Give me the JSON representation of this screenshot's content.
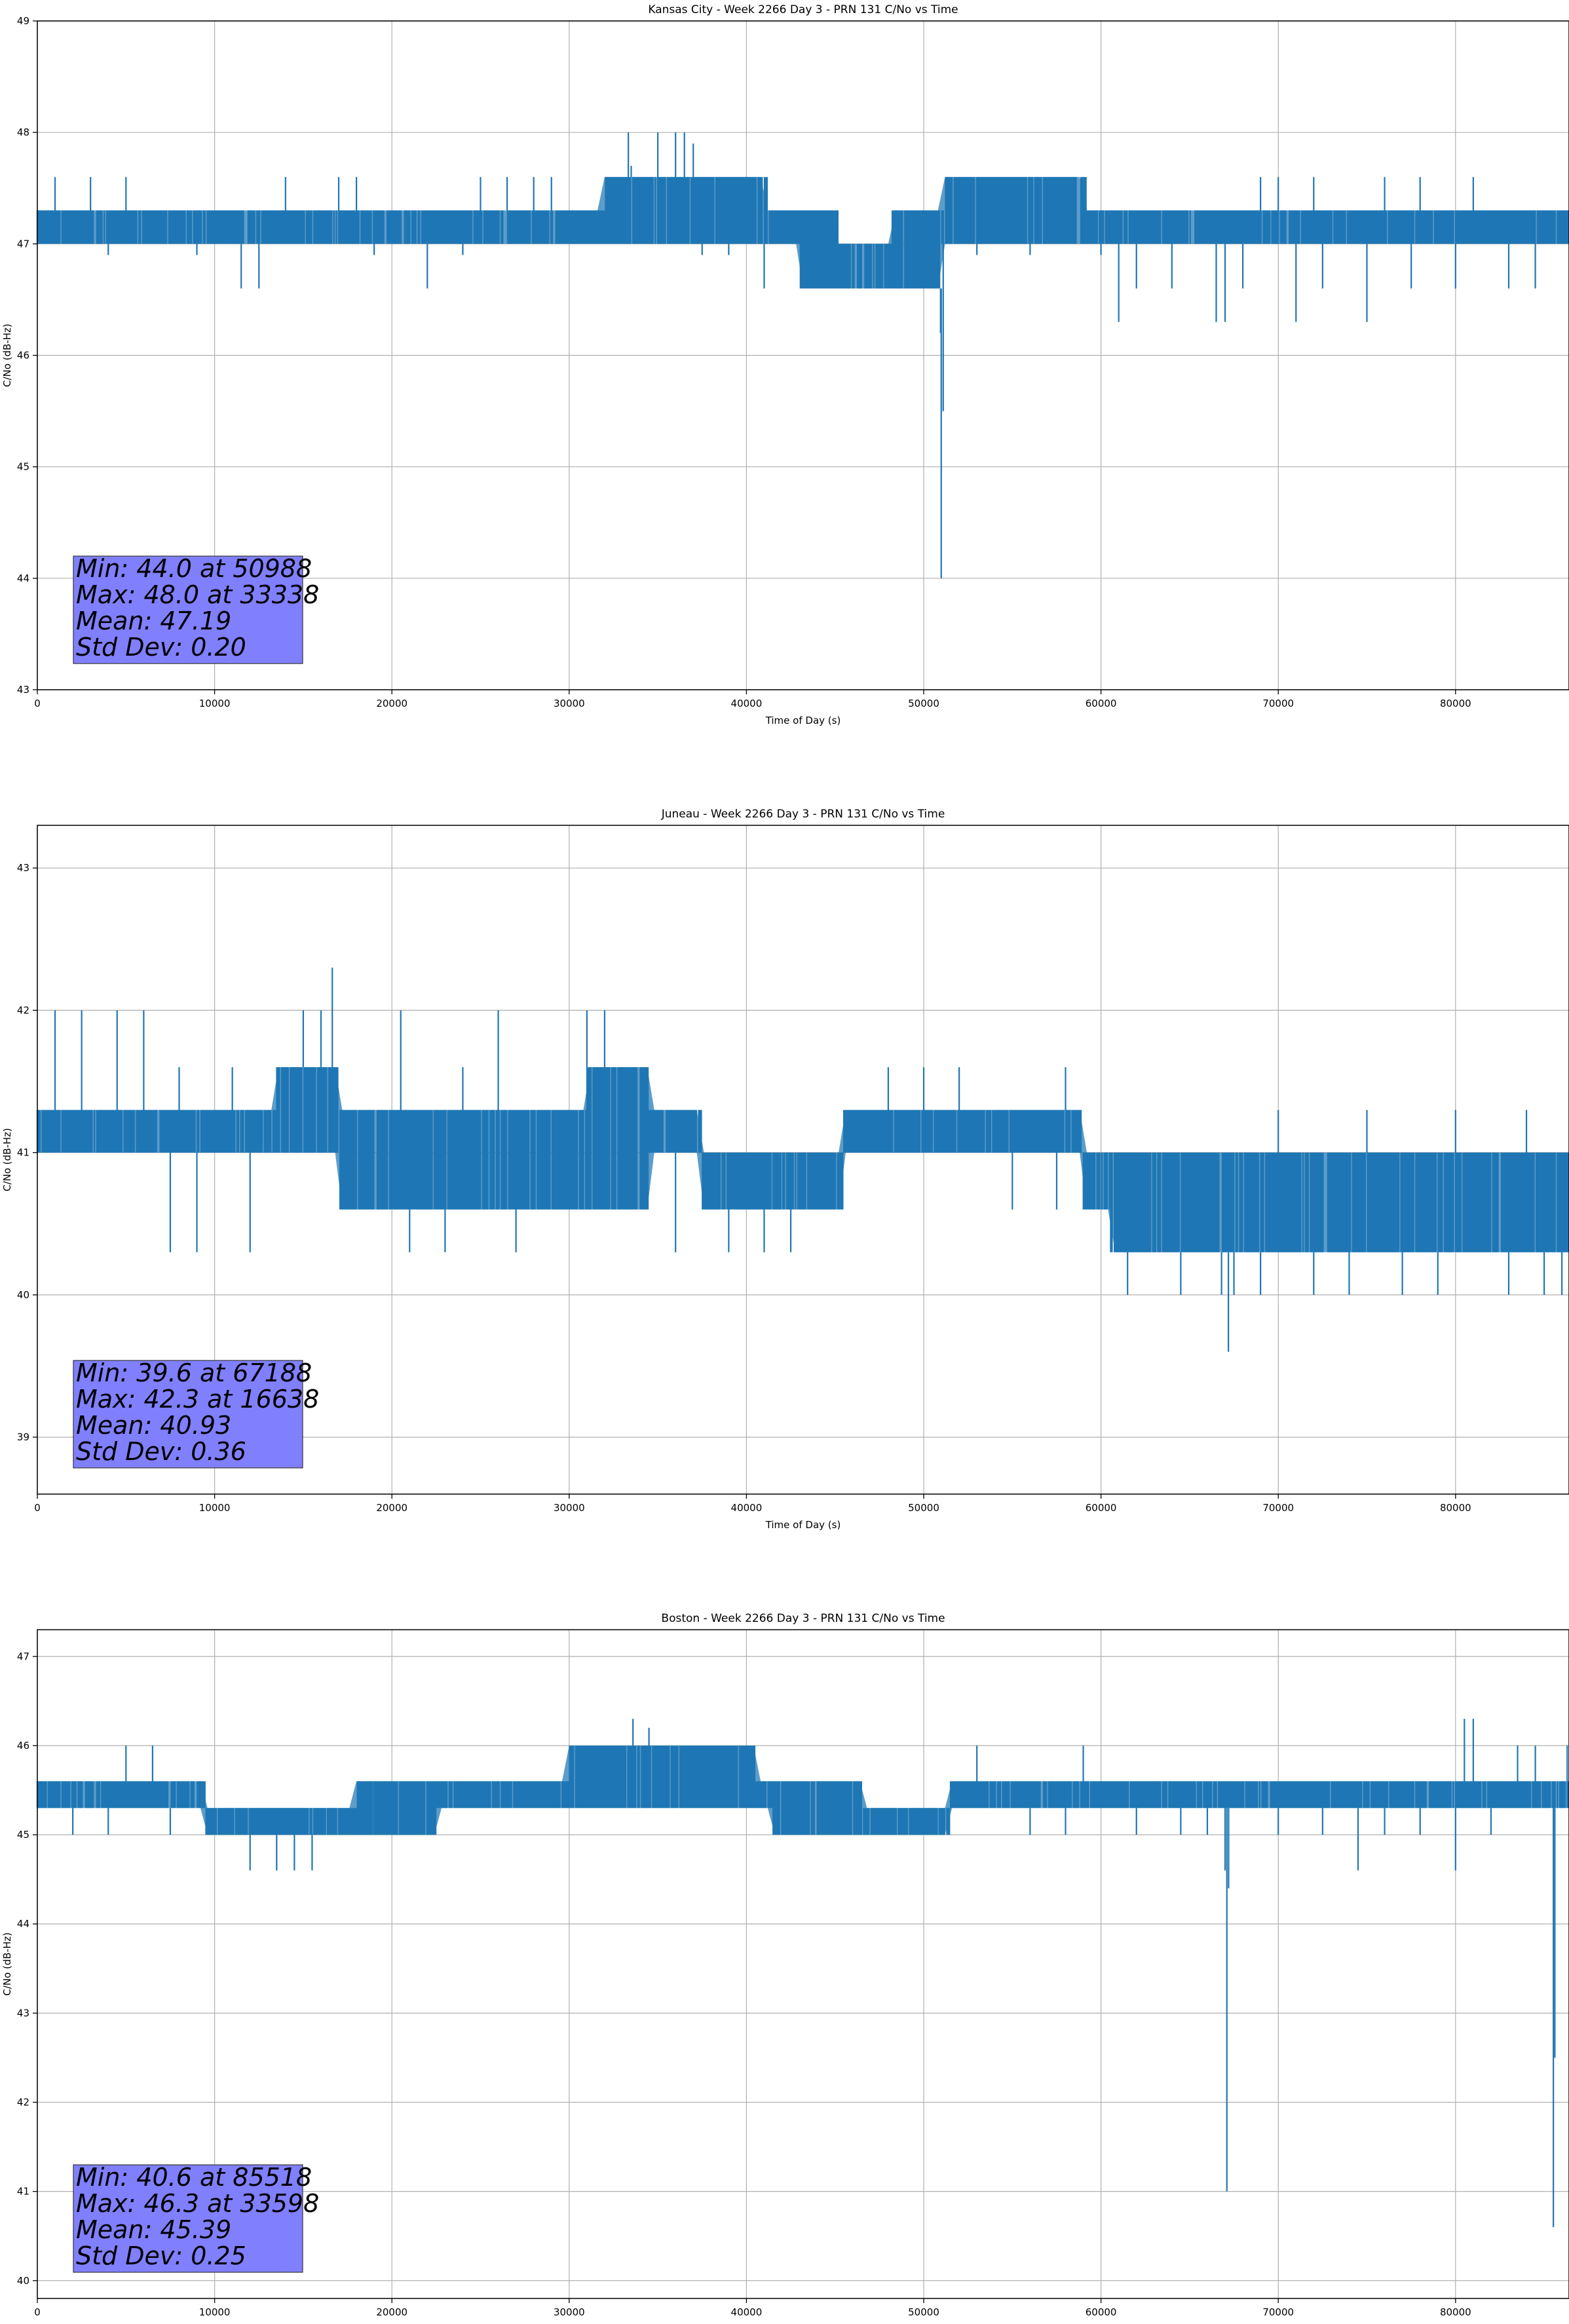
{
  "chart_data": [
    {
      "type": "line",
      "title": "Kansas City - Week 2266 Day 3 - PRN 131 C/No vs Time",
      "xlabel": "Time of Day (s)",
      "ylabel": "C/No (dB-Hz)",
      "xlim": [
        0,
        86400
      ],
      "ylim": [
        43,
        49
      ],
      "xticks": [
        0,
        10000,
        20000,
        30000,
        40000,
        50000,
        60000,
        70000,
        80000
      ],
      "yticks": [
        43,
        44,
        45,
        46,
        47,
        48,
        49
      ],
      "grid": true,
      "series": [
        {
          "color": "#1f77b4",
          "baseline": [
            [
              0,
              47.0
            ],
            [
              40000,
              47.0
            ],
            [
              43000,
              46.6
            ],
            [
              48000,
              46.6
            ],
            [
              51000,
              47.0
            ],
            [
              86400,
              47.0
            ]
          ],
          "upper": [
            [
              0,
              47.3
            ],
            [
              31500,
              47.3
            ],
            [
              32000,
              47.6
            ],
            [
              41000,
              47.6
            ],
            [
              41200,
              47.3
            ],
            [
              45000,
              47.3
            ],
            [
              45200,
              47.0
            ],
            [
              48000,
              47.0
            ],
            [
              48200,
              47.3
            ],
            [
              51000,
              47.3
            ],
            [
              51200,
              47.6
            ],
            [
              59000,
              47.6
            ],
            [
              59200,
              47.3
            ],
            [
              86400,
              47.3
            ]
          ],
          "spikes": [
            [
              50988,
              44.0
            ],
            [
              51100,
              45.5
            ],
            [
              50950,
              46.2
            ],
            [
              33338,
              48.0
            ],
            [
              35000,
              48.0
            ],
            [
              36000,
              48.0
            ],
            [
              36500,
              48.0
            ],
            [
              37000,
              47.9
            ],
            [
              33500,
              47.7
            ],
            [
              11500,
              46.6
            ],
            [
              12500,
              46.6
            ],
            [
              22000,
              46.6
            ],
            [
              41000,
              46.6
            ],
            [
              61000,
              46.3
            ],
            [
              62000,
              46.6
            ],
            [
              64000,
              46.6
            ],
            [
              66500,
              46.3
            ],
            [
              67000,
              46.3
            ],
            [
              68000,
              46.6
            ],
            [
              71000,
              46.3
            ],
            [
              72500,
              46.6
            ],
            [
              75000,
              46.3
            ],
            [
              77500,
              46.6
            ],
            [
              80000,
              46.6
            ],
            [
              83000,
              46.6
            ],
            [
              84500,
              46.6
            ],
            [
              1000,
              47.6
            ],
            [
              3000,
              47.6
            ],
            [
              5000,
              47.6
            ],
            [
              14000,
              47.6
            ],
            [
              17000,
              47.6
            ],
            [
              18000,
              47.6
            ],
            [
              25000,
              47.6
            ],
            [
              26500,
              47.6
            ],
            [
              28000,
              47.6
            ],
            [
              29000,
              47.6
            ],
            [
              69000,
              47.6
            ],
            [
              70000,
              47.6
            ],
            [
              72000,
              47.6
            ],
            [
              76000,
              47.6
            ],
            [
              78000,
              47.6
            ],
            [
              81000,
              47.6
            ],
            [
              4000,
              46.9
            ],
            [
              9000,
              46.9
            ],
            [
              19000,
              46.9
            ],
            [
              24000,
              46.9
            ],
            [
              37500,
              46.9
            ],
            [
              39000,
              46.9
            ],
            [
              53000,
              46.9
            ],
            [
              56000,
              46.9
            ],
            [
              60000,
              46.9
            ]
          ]
        }
      ],
      "stats_box": {
        "min": "Min: 44.0 at 50988",
        "max": "Max: 48.0 at 33338",
        "mean": "Mean: 47.19",
        "std": "Std Dev: 0.20",
        "color": "#8080ff"
      }
    },
    {
      "type": "line",
      "title": "Juneau - Week 2266 Day 3 - PRN 131 C/No vs Time",
      "xlabel": "Time of Day (s)",
      "ylabel": "C/No (dB-Hz)",
      "xlim": [
        0,
        86400
      ],
      "ylim": [
        38.6,
        43.3
      ],
      "xticks": [
        0,
        10000,
        20000,
        30000,
        40000,
        50000,
        60000,
        70000,
        80000
      ],
      "yticks": [
        39,
        40,
        41,
        42,
        43
      ],
      "grid": true,
      "series": [
        {
          "color": "#1f77b4",
          "baseline": [
            [
              0,
              41.0
            ],
            [
              16500,
              41.0
            ],
            [
              17000,
              40.6
            ],
            [
              34000,
              40.6
            ],
            [
              34500,
              41.0
            ],
            [
              37000,
              41.0
            ],
            [
              37500,
              40.6
            ],
            [
              45000,
              40.6
            ],
            [
              45500,
              41.0
            ],
            [
              58500,
              41.0
            ],
            [
              59000,
              40.6
            ],
            [
              60000,
              40.6
            ],
            [
              60500,
              40.3
            ],
            [
              86400,
              40.3
            ]
          ],
          "upper": [
            [
              0,
              41.3
            ],
            [
              13000,
              41.3
            ],
            [
              13500,
              41.6
            ],
            [
              16800,
              41.6
            ],
            [
              17000,
              41.3
            ],
            [
              30500,
              41.3
            ],
            [
              31000,
              41.6
            ],
            [
              34000,
              41.6
            ],
            [
              34500,
              41.3
            ],
            [
              37000,
              41.3
            ],
            [
              37500,
              41.0
            ],
            [
              45000,
              41.0
            ],
            [
              45500,
              41.3
            ],
            [
              58500,
              41.3
            ],
            [
              59000,
              41.0
            ],
            [
              86400,
              41.0
            ]
          ],
          "spikes": [
            [
              67188,
              39.6
            ],
            [
              66800,
              40.0
            ],
            [
              67500,
              40.0
            ],
            [
              64500,
              40.0
            ],
            [
              74000,
              40.0
            ],
            [
              79000,
              40.0
            ],
            [
              83000,
              40.0
            ],
            [
              16638,
              42.3
            ],
            [
              1000,
              42.0
            ],
            [
              2500,
              42.0
            ],
            [
              4500,
              42.0
            ],
            [
              6000,
              42.0
            ],
            [
              15000,
              42.0
            ],
            [
              16000,
              42.0
            ],
            [
              20500,
              42.0
            ],
            [
              26000,
              42.0
            ],
            [
              31000,
              42.0
            ],
            [
              32000,
              42.0
            ],
            [
              8000,
              41.6
            ],
            [
              11000,
              41.6
            ],
            [
              24000,
              41.6
            ],
            [
              48000,
              41.6
            ],
            [
              50000,
              41.6
            ],
            [
              52000,
              41.6
            ],
            [
              58000,
              41.6
            ],
            [
              70000,
              41.3
            ],
            [
              75000,
              41.3
            ],
            [
              80000,
              41.3
            ],
            [
              84000,
              41.3
            ],
            [
              7500,
              40.3
            ],
            [
              9000,
              40.3
            ],
            [
              12000,
              40.3
            ],
            [
              21000,
              40.3
            ],
            [
              23000,
              40.3
            ],
            [
              27000,
              40.3
            ],
            [
              36000,
              40.3
            ],
            [
              39000,
              40.3
            ],
            [
              41000,
              40.3
            ],
            [
              42500,
              40.3
            ],
            [
              55000,
              40.6
            ],
            [
              57500,
              40.6
            ],
            [
              61500,
              40.0
            ],
            [
              63000,
              40.3
            ],
            [
              69000,
              40.0
            ],
            [
              72000,
              40.0
            ],
            [
              77000,
              40.0
            ],
            [
              85000,
              40.0
            ],
            [
              86000,
              40.0
            ]
          ]
        }
      ],
      "stats_box": {
        "min": "Min: 39.6 at 67188",
        "max": "Max: 42.3 at 16638",
        "mean": "Mean: 40.93",
        "std": "Std Dev: 0.36",
        "color": "#8080ff"
      }
    },
    {
      "type": "line",
      "title": "Boston - Week 2266 Day 3 - PRN 131 C/No vs Time",
      "xlabel": "Time of Day (s)",
      "ylabel": "C/No (dB-Hz)",
      "xlim": [
        0,
        86400
      ],
      "ylim": [
        39.8,
        47.3
      ],
      "xticks": [
        0,
        10000,
        20000,
        30000,
        40000,
        50000,
        60000,
        70000,
        80000
      ],
      "yticks": [
        40,
        41,
        42,
        43,
        44,
        45,
        46,
        47
      ],
      "grid": true,
      "series": [
        {
          "color": "#1f77b4",
          "baseline": [
            [
              0,
              45.3
            ],
            [
              9000,
              45.3
            ],
            [
              9500,
              45.0
            ],
            [
              22000,
              45.0
            ],
            [
              22500,
              45.3
            ],
            [
              41000,
              45.3
            ],
            [
              41500,
              45.0
            ],
            [
              51000,
              45.0
            ],
            [
              51500,
              45.3
            ],
            [
              86400,
              45.3
            ]
          ],
          "upper": [
            [
              0,
              45.6
            ],
            [
              9000,
              45.6
            ],
            [
              9500,
              45.3
            ],
            [
              17500,
              45.3
            ],
            [
              18000,
              45.6
            ],
            [
              24500,
              45.6
            ],
            [
              25000,
              45.6
            ],
            [
              29500,
              45.6
            ],
            [
              30000,
              46.0
            ],
            [
              40000,
              46.0
            ],
            [
              40500,
              45.6
            ],
            [
              46000,
              45.6
            ],
            [
              46500,
              45.3
            ],
            [
              51000,
              45.3
            ],
            [
              51500,
              45.6
            ],
            [
              86400,
              45.6
            ]
          ],
          "spikes": [
            [
              85518,
              40.6
            ],
            [
              85600,
              42.5
            ],
            [
              67100,
              41.0
            ],
            [
              67200,
              44.4
            ],
            [
              67000,
              44.6
            ],
            [
              12000,
              44.6
            ],
            [
              13500,
              44.6
            ],
            [
              14500,
              44.6
            ],
            [
              15500,
              44.6
            ],
            [
              74500,
              44.6
            ],
            [
              80000,
              44.6
            ],
            [
              33598,
              46.3
            ],
            [
              34500,
              46.2
            ],
            [
              80500,
              46.3
            ],
            [
              81000,
              46.3
            ],
            [
              86300,
              46.0
            ],
            [
              5000,
              46.0
            ],
            [
              6500,
              46.0
            ],
            [
              31000,
              46.0
            ],
            [
              53000,
              46.0
            ],
            [
              59000,
              46.0
            ],
            [
              83500,
              46.0
            ],
            [
              84500,
              46.0
            ],
            [
              2000,
              45.0
            ],
            [
              4000,
              45.0
            ],
            [
              7500,
              45.0
            ],
            [
              11000,
              45.0
            ],
            [
              16500,
              45.0
            ],
            [
              19000,
              45.0
            ],
            [
              26000,
              45.3
            ],
            [
              36000,
              45.6
            ],
            [
              44000,
              45.0
            ],
            [
              56000,
              45.0
            ],
            [
              58000,
              45.0
            ],
            [
              62000,
              45.0
            ],
            [
              64500,
              45.0
            ],
            [
              66000,
              45.0
            ],
            [
              70000,
              45.0
            ],
            [
              72500,
              45.0
            ],
            [
              76000,
              45.0
            ],
            [
              78000,
              45.0
            ],
            [
              82000,
              45.0
            ]
          ]
        }
      ],
      "stats_box": {
        "min": "Min: 40.6 at 85518",
        "max": "Max: 46.3 at 33598",
        "mean": "Mean: 45.39",
        "std": "Std Dev: 0.25",
        "color": "#8080ff"
      }
    }
  ]
}
